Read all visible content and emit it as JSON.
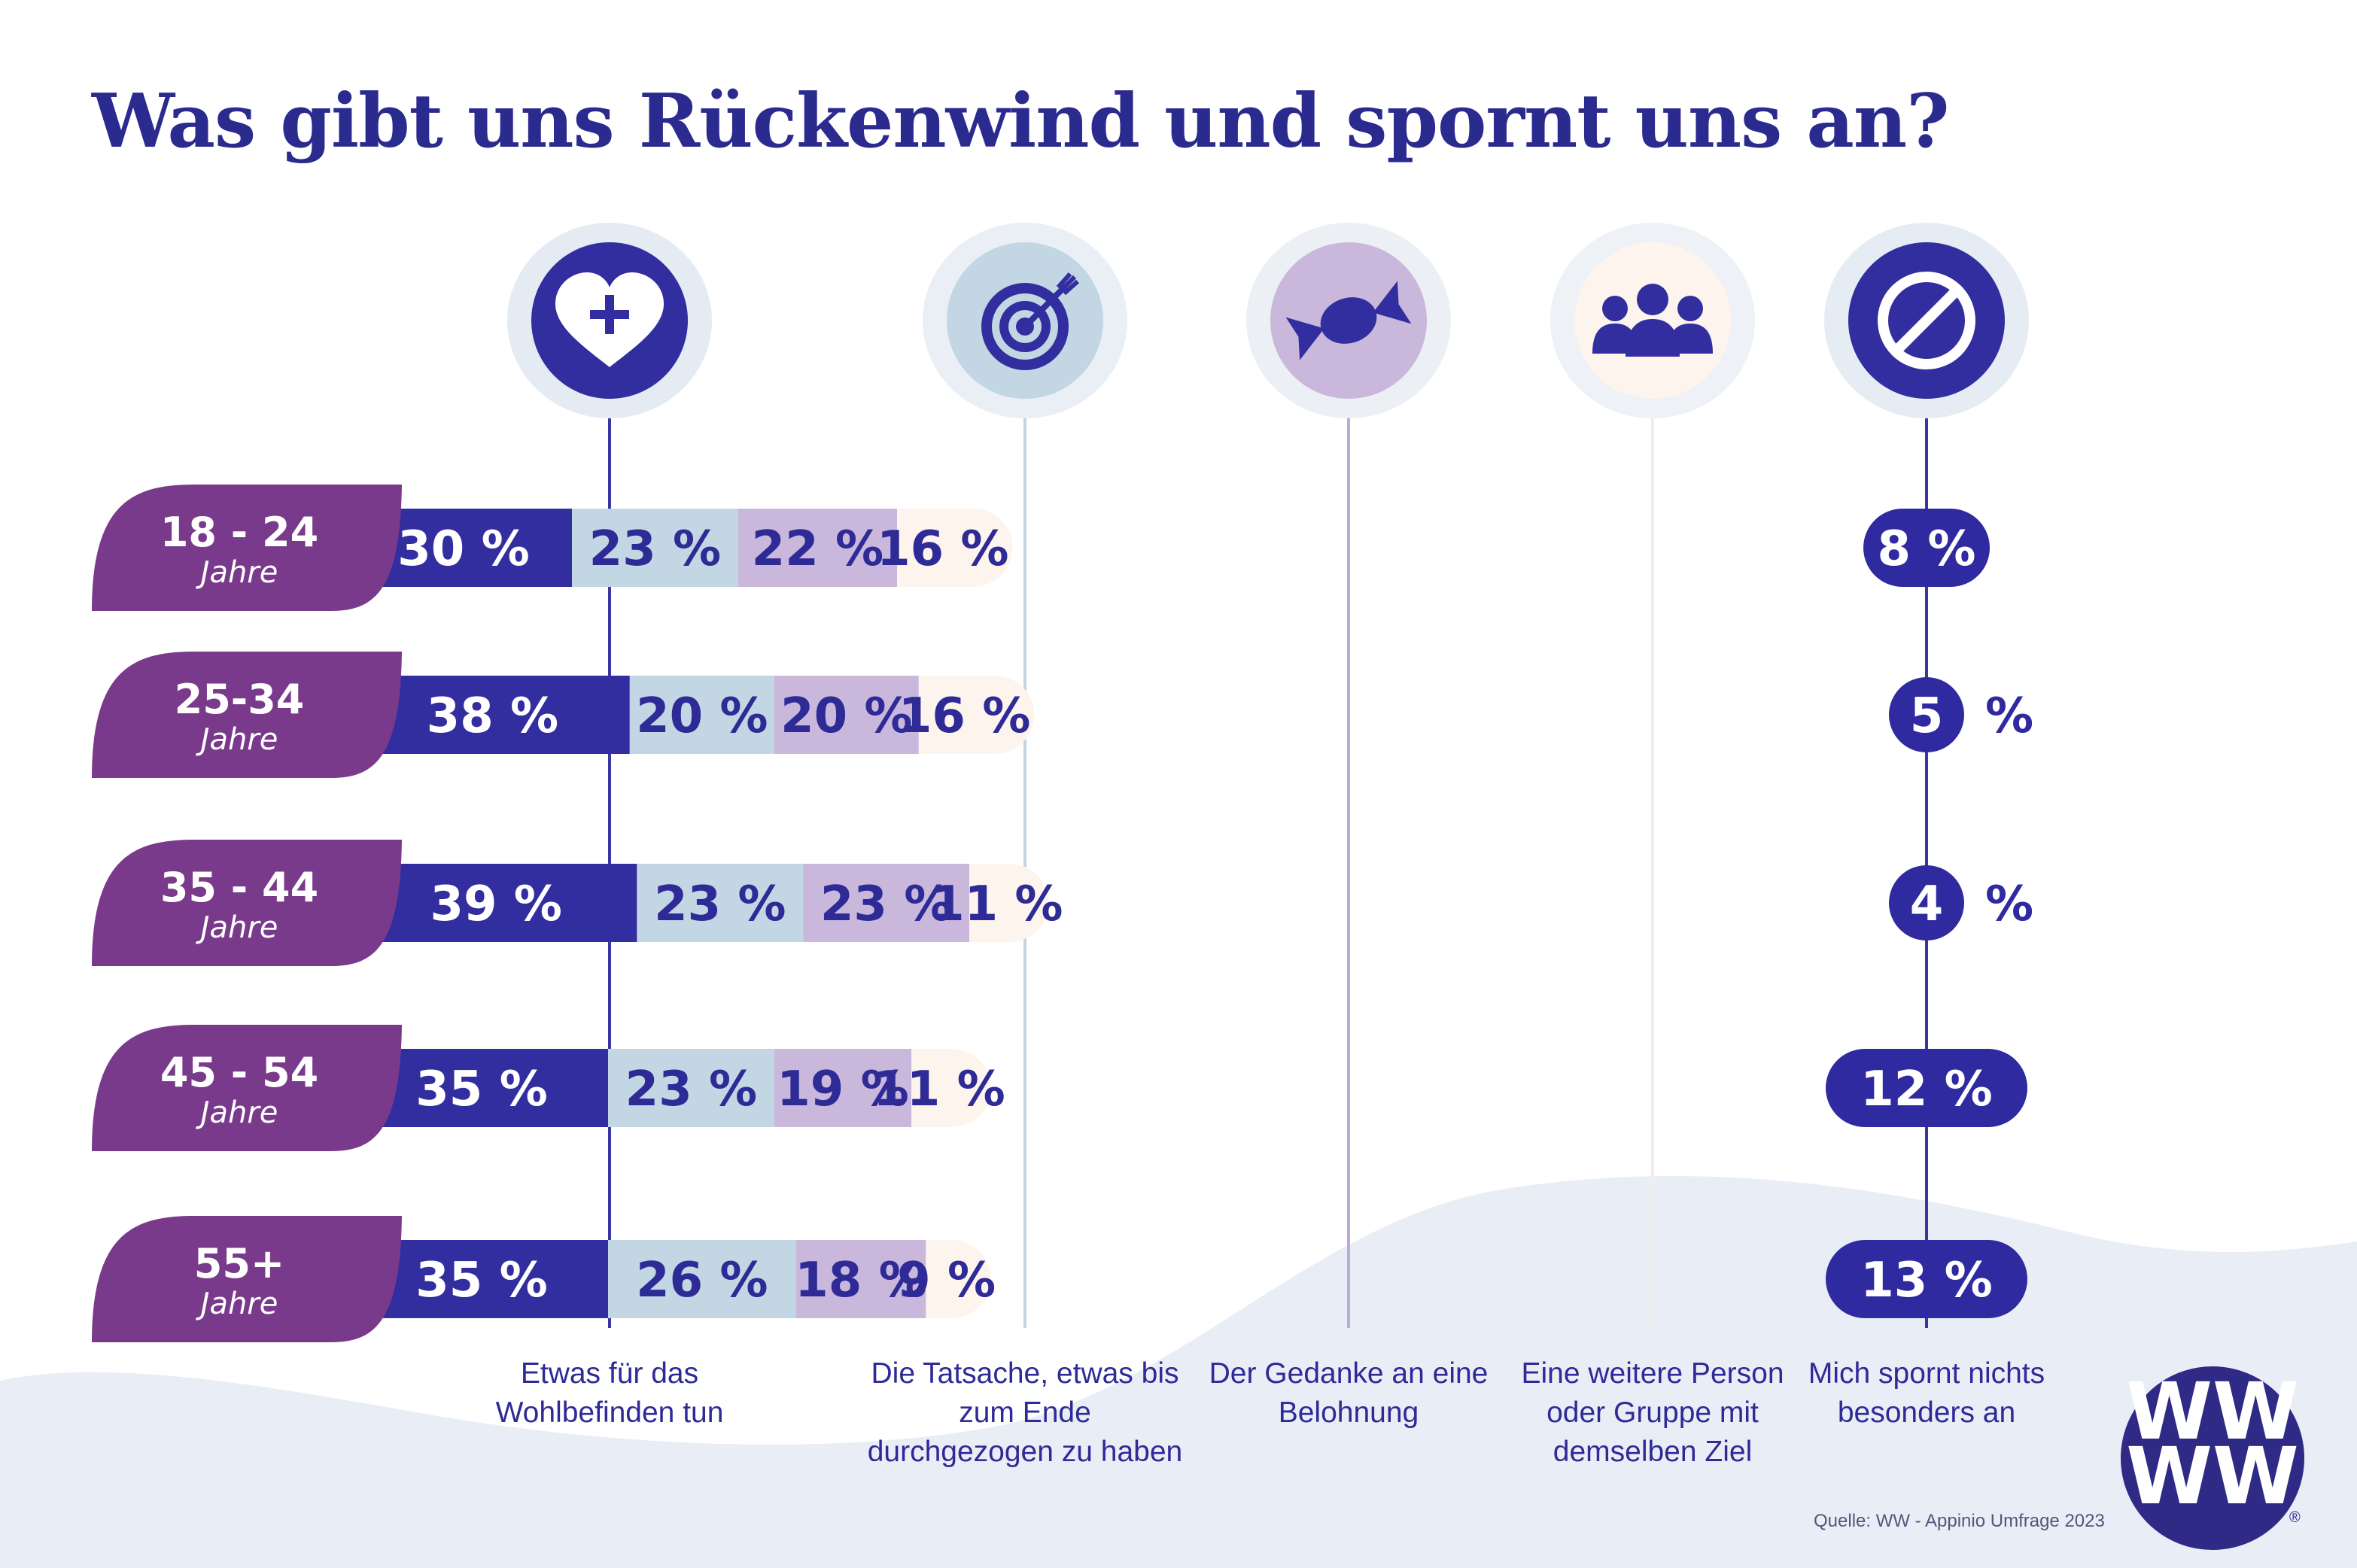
{
  "title": "Was gibt uns Rückenwind und spornt uns an?",
  "categories": [
    {
      "label": "Etwas für das Wohlbefinden tun",
      "icon": "heart-plus-icon"
    },
    {
      "label": "Die Tatsache, etwas bis zum Ende durchgezogen zu haben",
      "icon": "target-icon"
    },
    {
      "label": "Der Gedanke an eine Belohnung",
      "icon": "candy-icon"
    },
    {
      "label": "Eine weitere Person oder Gruppe mit demselben Ziel",
      "icon": "group-icon"
    },
    {
      "label": "Mich spornt nichts besonders an",
      "icon": "prohibited-icon"
    }
  ],
  "source": "Quelle: WW - Appinio Umfrage 2023",
  "logo": {
    "text": "WW",
    "mark": "®"
  },
  "colors": {
    "title": "#2b2a8e",
    "series": [
      "#332e9f",
      "#c3d6e3",
      "#c9b8dc",
      "#fdf4ee",
      "#2f2aa0"
    ],
    "age_tab": "#793a8b",
    "background_wave": "#e9eef6"
  },
  "chart_data": {
    "type": "bar",
    "orientation": "horizontal",
    "stacked": true,
    "title": "Was gibt uns Rückenwind und spornt uns an?",
    "unit": "%",
    "groups": [
      {
        "age": "18 - 24",
        "sub": "Jahre"
      },
      {
        "age": "25-34",
        "sub": "Jahre"
      },
      {
        "age": "35 - 44",
        "sub": "Jahre"
      },
      {
        "age": "45 - 54",
        "sub": "Jahre"
      },
      {
        "age": "55+",
        "sub": "Jahre"
      }
    ],
    "series": [
      {
        "name": "Etwas für das Wohlbefinden tun",
        "values": [
          30,
          38,
          39,
          35,
          35
        ]
      },
      {
        "name": "Die Tatsache, etwas bis zum Ende durchgezogen zu haben",
        "values": [
          23,
          20,
          23,
          23,
          26
        ]
      },
      {
        "name": "Der Gedanke an eine Belohnung",
        "values": [
          22,
          20,
          23,
          19,
          18
        ]
      },
      {
        "name": "Eine weitere Person oder Gruppe mit demselben Ziel",
        "values": [
          16,
          16,
          11,
          11,
          9
        ]
      },
      {
        "name": "Mich spornt nichts besonders an",
        "values": [
          8,
          5,
          4,
          12,
          13
        ]
      }
    ]
  }
}
